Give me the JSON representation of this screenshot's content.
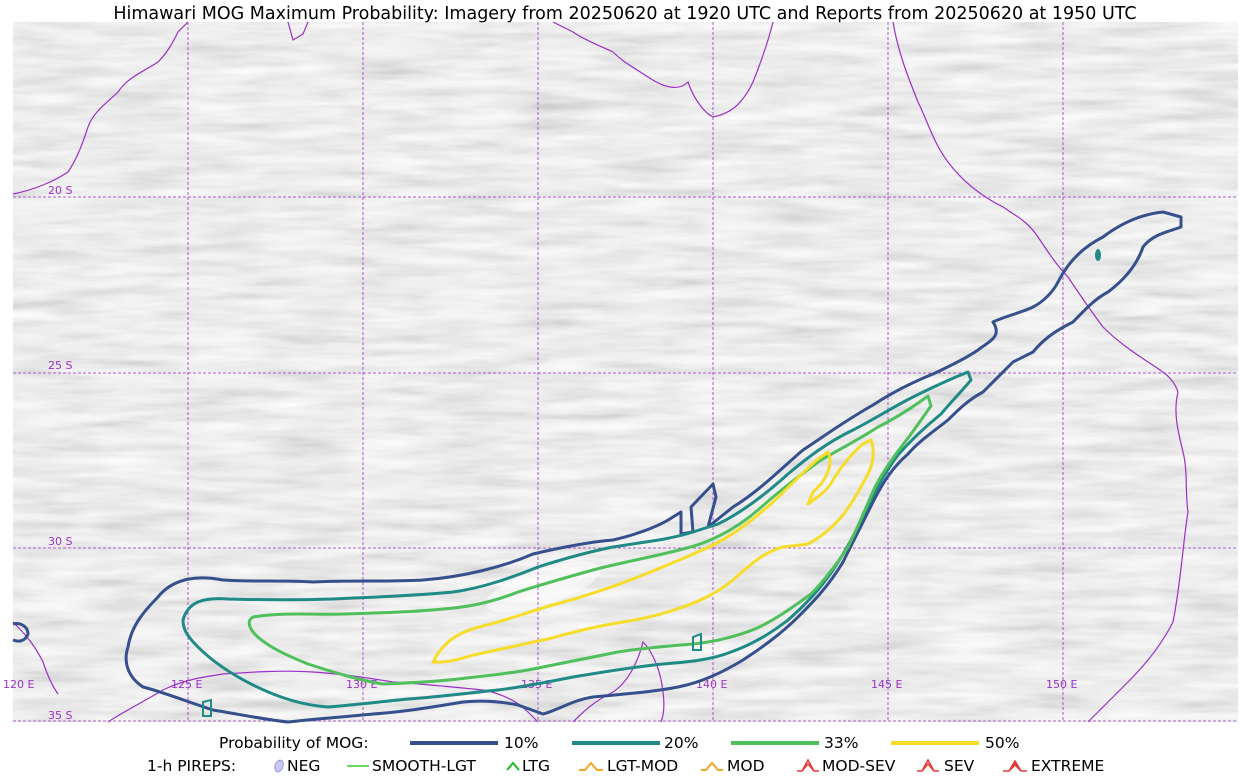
{
  "title": "Himawari MOG Maximum Probability: Imagery from 20250620 at 1920 UTC and Reports from 20250620 at 1950 UTC",
  "map": {
    "latitude_labels": [
      "20 S",
      "25 S",
      "30 S",
      "35 S"
    ],
    "longitude_labels": [
      "120 E",
      "125 E",
      "130 E",
      "135 E",
      "140 E",
      "145 E",
      "150 E"
    ],
    "colors": {
      "grid": "#9b30c8",
      "coast": "#9b30c8",
      "p10": "#35508c",
      "p20": "#1f8a86",
      "p33": "#4fc05c",
      "p50": "#f7dd2a"
    }
  },
  "legend": {
    "probability_label": "Probability of MOG:",
    "probability_items": [
      "10%",
      "20%",
      "33%",
      "50%"
    ],
    "pireps_label": "1-h PIREPS:",
    "pireps_items": [
      "NEG",
      "SMOOTH-LGT",
      "LTG",
      "LGT-MOD",
      "MOD",
      "MOD-SEV",
      "SEV",
      "EXTREME"
    ]
  }
}
